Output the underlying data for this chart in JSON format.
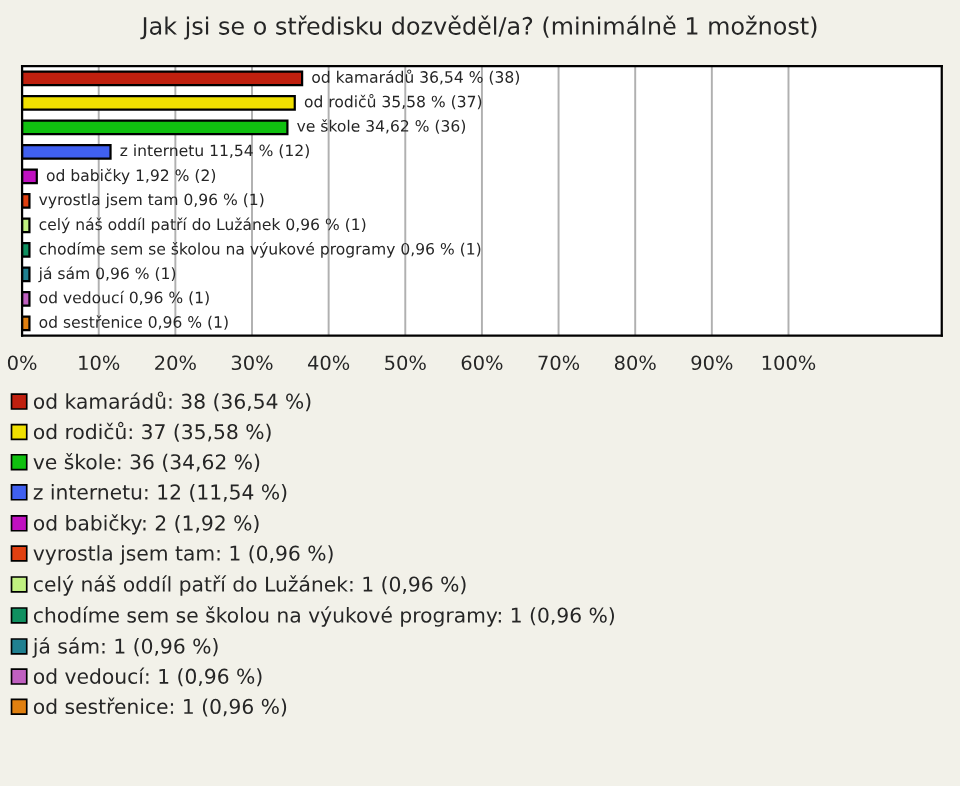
{
  "chart_data": {
    "type": "bar",
    "orientation": "horizontal",
    "title": "Jak jsi se o středisku dozvěděl/a? (minimálně 1 možnost)",
    "categories": [
      null,
      null,
      null,
      null,
      null,
      null,
      null,
      null,
      null,
      null,
      null
    ],
    "series": [
      {
        "name": "od kamarádů: 38 (36,54 %)",
        "color": "#c0200f",
        "values": [
          36.54,
          null,
          null,
          null,
          null,
          null,
          null,
          null,
          null,
          null,
          null
        ],
        "value_labels": [
          "od kamarádů 36,54 % (38)",
          null,
          null,
          null,
          null,
          null,
          null,
          null,
          null,
          null,
          null
        ]
      },
      {
        "name": "od rodičů: 37 (35,58 %)",
        "color": "#f0e000",
        "values": [
          null,
          35.58,
          null,
          null,
          null,
          null,
          null,
          null,
          null,
          null,
          null
        ],
        "value_labels": [
          null,
          "od rodičů 35,58 % (37)",
          null,
          null,
          null,
          null,
          null,
          null,
          null,
          null,
          null
        ]
      },
      {
        "name": "ve škole: 36 (34,62 %)",
        "color": "#10c010",
        "values": [
          null,
          null,
          34.62,
          null,
          null,
          null,
          null,
          null,
          null,
          null,
          null
        ],
        "value_labels": [
          null,
          null,
          "ve škole 34,62 % (36)",
          null,
          null,
          null,
          null,
          null,
          null,
          null,
          null
        ]
      },
      {
        "name": "z internetu: 12 (11,54 %)",
        "color": "#4060f0",
        "values": [
          null,
          null,
          null,
          11.54,
          null,
          null,
          null,
          null,
          null,
          null,
          null
        ],
        "value_labels": [
          null,
          null,
          null,
          "z internetu 11,54 % (12)",
          null,
          null,
          null,
          null,
          null,
          null,
          null
        ]
      },
      {
        "name": "od babičky: 2 (1,92 %)",
        "color": "#c010c0",
        "values": [
          null,
          null,
          null,
          null,
          1.92,
          null,
          null,
          null,
          null,
          null,
          null
        ],
        "value_labels": [
          null,
          null,
          null,
          null,
          "od babičky 1,92 % (2)",
          null,
          null,
          null,
          null,
          null,
          null
        ]
      },
      {
        "name": "vyrostla jsem tam: 1 (0,96 %)",
        "color": "#e04010",
        "values": [
          null,
          null,
          null,
          null,
          null,
          0.96,
          null,
          null,
          null,
          null,
          null
        ],
        "value_labels": [
          null,
          null,
          null,
          null,
          null,
          "vyrostla jsem tam 0,96 % (1)",
          null,
          null,
          null,
          null,
          null
        ]
      },
      {
        "name": "celý náš oddíl patří do Lužánek: 1 (0,96 %)",
        "color": "#c0f080",
        "values": [
          null,
          null,
          null,
          null,
          null,
          null,
          0.96,
          null,
          null,
          null,
          null
        ],
        "value_labels": [
          null,
          null,
          null,
          null,
          null,
          null,
          "celý náš oddíl patří do Lužánek 0,96 % (1)",
          null,
          null,
          null,
          null
        ]
      },
      {
        "name": "chodíme sem se školou na výukové programy: 1 (0,96 %)",
        "color": "#109060",
        "values": [
          null,
          null,
          null,
          null,
          null,
          null,
          null,
          0.96,
          null,
          null,
          null
        ],
        "value_labels": [
          null,
          null,
          null,
          null,
          null,
          null,
          null,
          "chodíme sem se školou na výukové programy 0,96 % (1)",
          null,
          null,
          null
        ]
      },
      {
        "name": "já sám: 1 (0,96 %)",
        "color": "#208090",
        "values": [
          null,
          null,
          null,
          null,
          null,
          null,
          null,
          null,
          0.96,
          null,
          null
        ],
        "value_labels": [
          null,
          null,
          null,
          null,
          null,
          null,
          null,
          null,
          "já sám 0,96 % (1)",
          null,
          null
        ]
      },
      {
        "name": "od vedoucí: 1 (0,96 %)",
        "color": "#c060c0",
        "values": [
          null,
          null,
          null,
          null,
          null,
          null,
          null,
          null,
          null,
          0.96,
          null
        ],
        "value_labels": [
          null,
          null,
          null,
          null,
          null,
          null,
          null,
          null,
          null,
          "od vedoucí 0,96 % (1)",
          null
        ]
      },
      {
        "name": "od sestřenice: 1 (0,96 %)",
        "color": "#e08010",
        "values": [
          null,
          null,
          null,
          null,
          null,
          null,
          null,
          null,
          null,
          null,
          0.96
        ],
        "value_labels": [
          null,
          null,
          null,
          null,
          null,
          null,
          null,
          null,
          null,
          null,
          "od sestřenice 0,96 % (1)"
        ]
      }
    ],
    "xlim": [
      0,
      120
    ],
    "xticks": [
      {
        "value": 0,
        "label": "0%"
      },
      {
        "value": 10,
        "label": "10%"
      },
      {
        "value": 20,
        "label": "20%"
      },
      {
        "value": 30,
        "label": "30%"
      },
      {
        "value": 40,
        "label": "40%"
      },
      {
        "value": 50,
        "label": "50%"
      },
      {
        "value": 60,
        "label": "60%"
      },
      {
        "value": 70,
        "label": "70%"
      },
      {
        "value": 80,
        "label": "80%"
      },
      {
        "value": 90,
        "label": "90%"
      },
      {
        "value": 100,
        "label": "100%"
      }
    ],
    "grid": "x",
    "legend": "bottom"
  }
}
